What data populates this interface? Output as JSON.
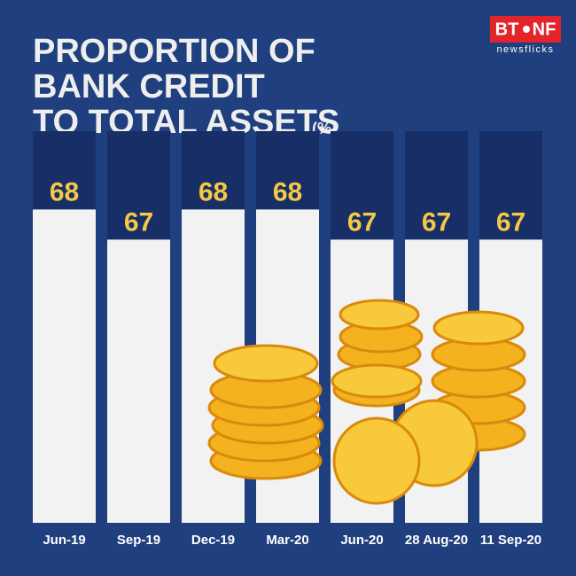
{
  "logo": {
    "left": "BT",
    "right": "NF",
    "tagline": "newsflicks"
  },
  "chart_data": {
    "type": "bar",
    "title": [
      "PROPORTION OF",
      "BANK CREDIT",
      "TO TOTAL ASSETS"
    ],
    "unit": "(%)",
    "categories": [
      "Jun-19",
      "Sep-19",
      "Dec-19",
      "Mar-20",
      "Jun-20",
      "28 Aug-20",
      "11 Sep-20"
    ],
    "values": [
      68,
      67,
      68,
      68,
      67,
      67,
      67
    ],
    "color": "#f2f2f2",
    "label_color": "#f7c844",
    "ylim": [
      57.6,
      70.6
    ]
  }
}
